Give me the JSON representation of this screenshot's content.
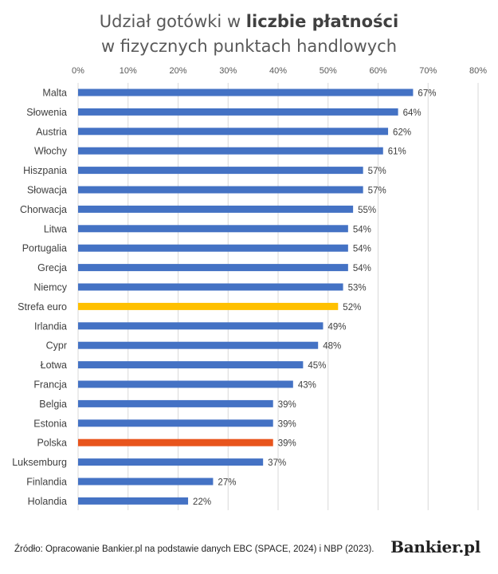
{
  "title": {
    "line1_normal": "Udział gotówki w ",
    "line1_bold": "liczbie płatności",
    "line2": "w fizycznych punktach handlowych"
  },
  "source": "Źródło: Opracowanie Bankier.pl na podstawie danych EBC (SPACE, 2024) i NBP (2023).",
  "logo": "Bankier.pl",
  "colors": {
    "default": "#4472C4",
    "eurozone": "#FFC000",
    "poland": "#E8541C"
  },
  "chart_data": {
    "type": "bar",
    "orientation": "horizontal",
    "xlim": [
      0,
      80
    ],
    "ticks": [
      "0%",
      "10%",
      "20%",
      "30%",
      "40%",
      "50%",
      "60%",
      "70%",
      "80%"
    ],
    "tick_values": [
      0,
      10,
      20,
      30,
      40,
      50,
      60,
      70,
      80
    ],
    "grid": true,
    "categories": [
      "Malta",
      "Słowenia",
      "Austria",
      "Włochy",
      "Hiszpania",
      "Słowacja",
      "Chorwacja",
      "Litwa",
      "Portugalia",
      "Grecja",
      "Niemcy",
      "Strefa euro",
      "Irlandia",
      "Cypr",
      "Łotwa",
      "Francja",
      "Belgia",
      "Estonia",
      "Polska",
      "Luksemburg",
      "Finlandia",
      "Holandia"
    ],
    "values": [
      67,
      64,
      62,
      61,
      57,
      57,
      55,
      54,
      54,
      54,
      53,
      52,
      49,
      48,
      45,
      43,
      39,
      39,
      39,
      37,
      27,
      22
    ],
    "labels": [
      "67%",
      "64%",
      "62%",
      "61%",
      "57%",
      "57%",
      "55%",
      "54%",
      "54%",
      "54%",
      "53%",
      "52%",
      "49%",
      "48%",
      "45%",
      "43%",
      "39%",
      "39%",
      "39%",
      "37%",
      "27%",
      "22%"
    ],
    "highlight": {
      "Strefa euro": "eurozone",
      "Polska": "poland"
    }
  }
}
